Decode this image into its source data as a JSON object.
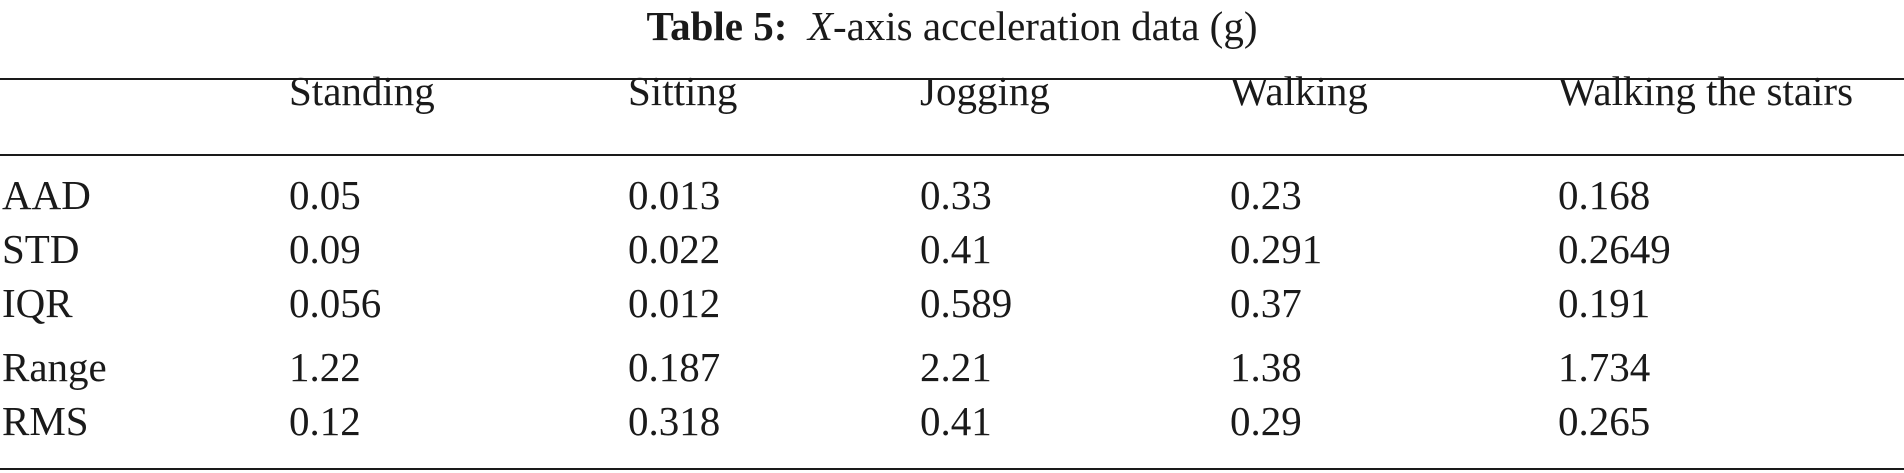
{
  "caption": {
    "label": "Table 5:",
    "axis": "X",
    "text": "-axis acceleration data (g)"
  },
  "table": {
    "columns": [
      "",
      "Standing",
      "Sitting",
      "Jogging",
      "Walking",
      "Walking the stairs"
    ],
    "rows": [
      {
        "label": "AAD",
        "values": [
          "0.05",
          "0.013",
          "0.33",
          "0.23",
          "0.168"
        ]
      },
      {
        "label": "STD",
        "values": [
          "0.09",
          "0.022",
          "0.41",
          "0.291",
          "0.2649"
        ]
      },
      {
        "label": "IQR",
        "values": [
          "0.056",
          "0.012",
          "0.589",
          "0.37",
          "0.191"
        ]
      },
      {
        "label": "Range",
        "values": [
          "1.22",
          "0.187",
          "2.21",
          "1.38",
          "1.734"
        ]
      },
      {
        "label": "RMS",
        "values": [
          "0.12",
          "0.318",
          "0.41",
          "0.29",
          "0.265"
        ]
      }
    ]
  }
}
